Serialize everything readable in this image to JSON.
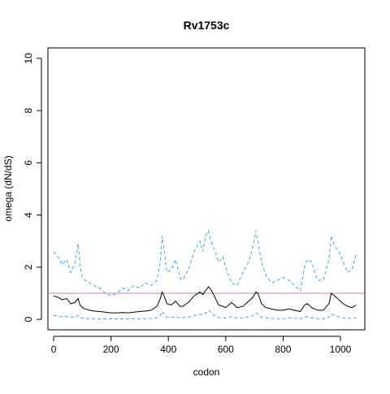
{
  "chart_data": {
    "type": "line",
    "title": "Rv1753c",
    "xlabel": "codon",
    "ylabel": "omega (dN/dS)",
    "xlim": [
      -20,
      1085
    ],
    "ylim": [
      -0.4,
      10.4
    ],
    "x_ticks": [
      0,
      200,
      400,
      600,
      800,
      1000
    ],
    "y_ticks": [
      0,
      2,
      4,
      6,
      8,
      10
    ],
    "reference_line": {
      "y": 1,
      "color": "#c080c0"
    },
    "series": [
      {
        "style": "upper-dashed",
        "color": "#3ba3e0",
        "dash": "dashed",
        "x": [
          0,
          15,
          30,
          45,
          60,
          75,
          85,
          92,
          100,
          110,
          125,
          140,
          160,
          180,
          200,
          220,
          240,
          260,
          280,
          300,
          320,
          340,
          360,
          372,
          378,
          385,
          395,
          410,
          425,
          440,
          450,
          470,
          490,
          510,
          520,
          530,
          540,
          548,
          560,
          575,
          590,
          600,
          620,
          640,
          660,
          680,
          695,
          705,
          712,
          725,
          740,
          760,
          780,
          800,
          820,
          840,
          860,
          875,
          885,
          900,
          920,
          940,
          960,
          968,
          980,
          995,
          1010,
          1025,
          1040,
          1055
        ],
        "y": [
          2.6,
          2.4,
          2.1,
          2.3,
          1.8,
          2.2,
          2.9,
          2.1,
          1.6,
          1.5,
          1.4,
          1.3,
          1.2,
          1.0,
          0.9,
          1.0,
          1.2,
          1.1,
          1.3,
          1.2,
          1.4,
          1.3,
          1.5,
          2.2,
          3.2,
          2.7,
          1.8,
          1.9,
          2.3,
          1.6,
          1.5,
          1.9,
          2.6,
          3.0,
          2.6,
          3.2,
          3.4,
          3.0,
          2.7,
          2.2,
          2.4,
          2.0,
          1.4,
          1.3,
          1.8,
          2.2,
          2.8,
          3.4,
          3.0,
          2.2,
          1.7,
          1.4,
          1.5,
          1.6,
          1.5,
          1.3,
          1.1,
          2.0,
          2.3,
          2.2,
          1.5,
          1.5,
          2.3,
          3.2,
          2.8,
          2.6,
          2.2,
          1.8,
          1.9,
          2.5
        ]
      },
      {
        "style": "estimate-solid",
        "color": "#000000",
        "dash": "solid",
        "x": [
          0,
          15,
          30,
          45,
          60,
          75,
          85,
          92,
          100,
          110,
          125,
          140,
          160,
          180,
          200,
          220,
          240,
          260,
          280,
          300,
          320,
          340,
          360,
          372,
          378,
          385,
          395,
          410,
          425,
          440,
          450,
          470,
          490,
          510,
          520,
          530,
          540,
          548,
          560,
          575,
          590,
          600,
          620,
          640,
          660,
          680,
          695,
          705,
          712,
          725,
          740,
          760,
          780,
          800,
          820,
          840,
          860,
          875,
          885,
          900,
          920,
          940,
          960,
          968,
          980,
          995,
          1010,
          1025,
          1040,
          1055
        ],
        "y": [
          0.9,
          0.85,
          0.75,
          0.8,
          0.6,
          0.65,
          0.8,
          0.55,
          0.45,
          0.4,
          0.35,
          0.32,
          0.3,
          0.28,
          0.25,
          0.25,
          0.26,
          0.25,
          0.28,
          0.3,
          0.32,
          0.35,
          0.5,
          0.8,
          1.05,
          0.9,
          0.6,
          0.55,
          0.7,
          0.5,
          0.5,
          0.65,
          0.9,
          1.05,
          0.95,
          1.1,
          1.25,
          1.15,
          0.9,
          0.55,
          0.5,
          0.45,
          0.65,
          0.45,
          0.5,
          0.7,
          0.85,
          1.05,
          1.0,
          0.6,
          0.45,
          0.4,
          0.35,
          0.35,
          0.4,
          0.35,
          0.3,
          0.55,
          0.6,
          0.45,
          0.35,
          0.35,
          0.6,
          1.0,
          0.9,
          0.75,
          0.6,
          0.5,
          0.45,
          0.55
        ]
      },
      {
        "style": "lower-dashed",
        "color": "#3ba3e0",
        "dash": "dashed",
        "x": [
          0,
          15,
          30,
          45,
          60,
          75,
          85,
          92,
          100,
          110,
          125,
          140,
          160,
          180,
          200,
          220,
          240,
          260,
          280,
          300,
          320,
          340,
          360,
          372,
          378,
          385,
          395,
          410,
          425,
          440,
          450,
          470,
          490,
          510,
          520,
          530,
          540,
          548,
          560,
          575,
          590,
          600,
          620,
          640,
          660,
          680,
          695,
          705,
          712,
          725,
          740,
          760,
          780,
          800,
          820,
          840,
          860,
          875,
          885,
          900,
          920,
          940,
          960,
          968,
          980,
          995,
          1010,
          1025,
          1040,
          1055
        ],
        "y": [
          0.15,
          0.12,
          0.1,
          0.12,
          0.08,
          0.1,
          0.15,
          0.06,
          0.05,
          0.04,
          0.03,
          0.03,
          0.02,
          0.02,
          0.02,
          0.02,
          0.02,
          0.02,
          0.02,
          0.03,
          0.03,
          0.04,
          0.06,
          0.15,
          0.3,
          0.2,
          0.08,
          0.07,
          0.1,
          0.06,
          0.06,
          0.08,
          0.15,
          0.2,
          0.18,
          0.25,
          0.35,
          0.28,
          0.15,
          0.07,
          0.06,
          0.05,
          0.1,
          0.05,
          0.06,
          0.1,
          0.15,
          0.25,
          0.2,
          0.08,
          0.05,
          0.04,
          0.03,
          0.03,
          0.05,
          0.04,
          0.03,
          0.08,
          0.1,
          0.05,
          0.03,
          0.03,
          0.08,
          0.2,
          0.15,
          0.1,
          0.06,
          0.04,
          0.04,
          0.06
        ]
      }
    ],
    "grid": false,
    "legend": "none"
  }
}
